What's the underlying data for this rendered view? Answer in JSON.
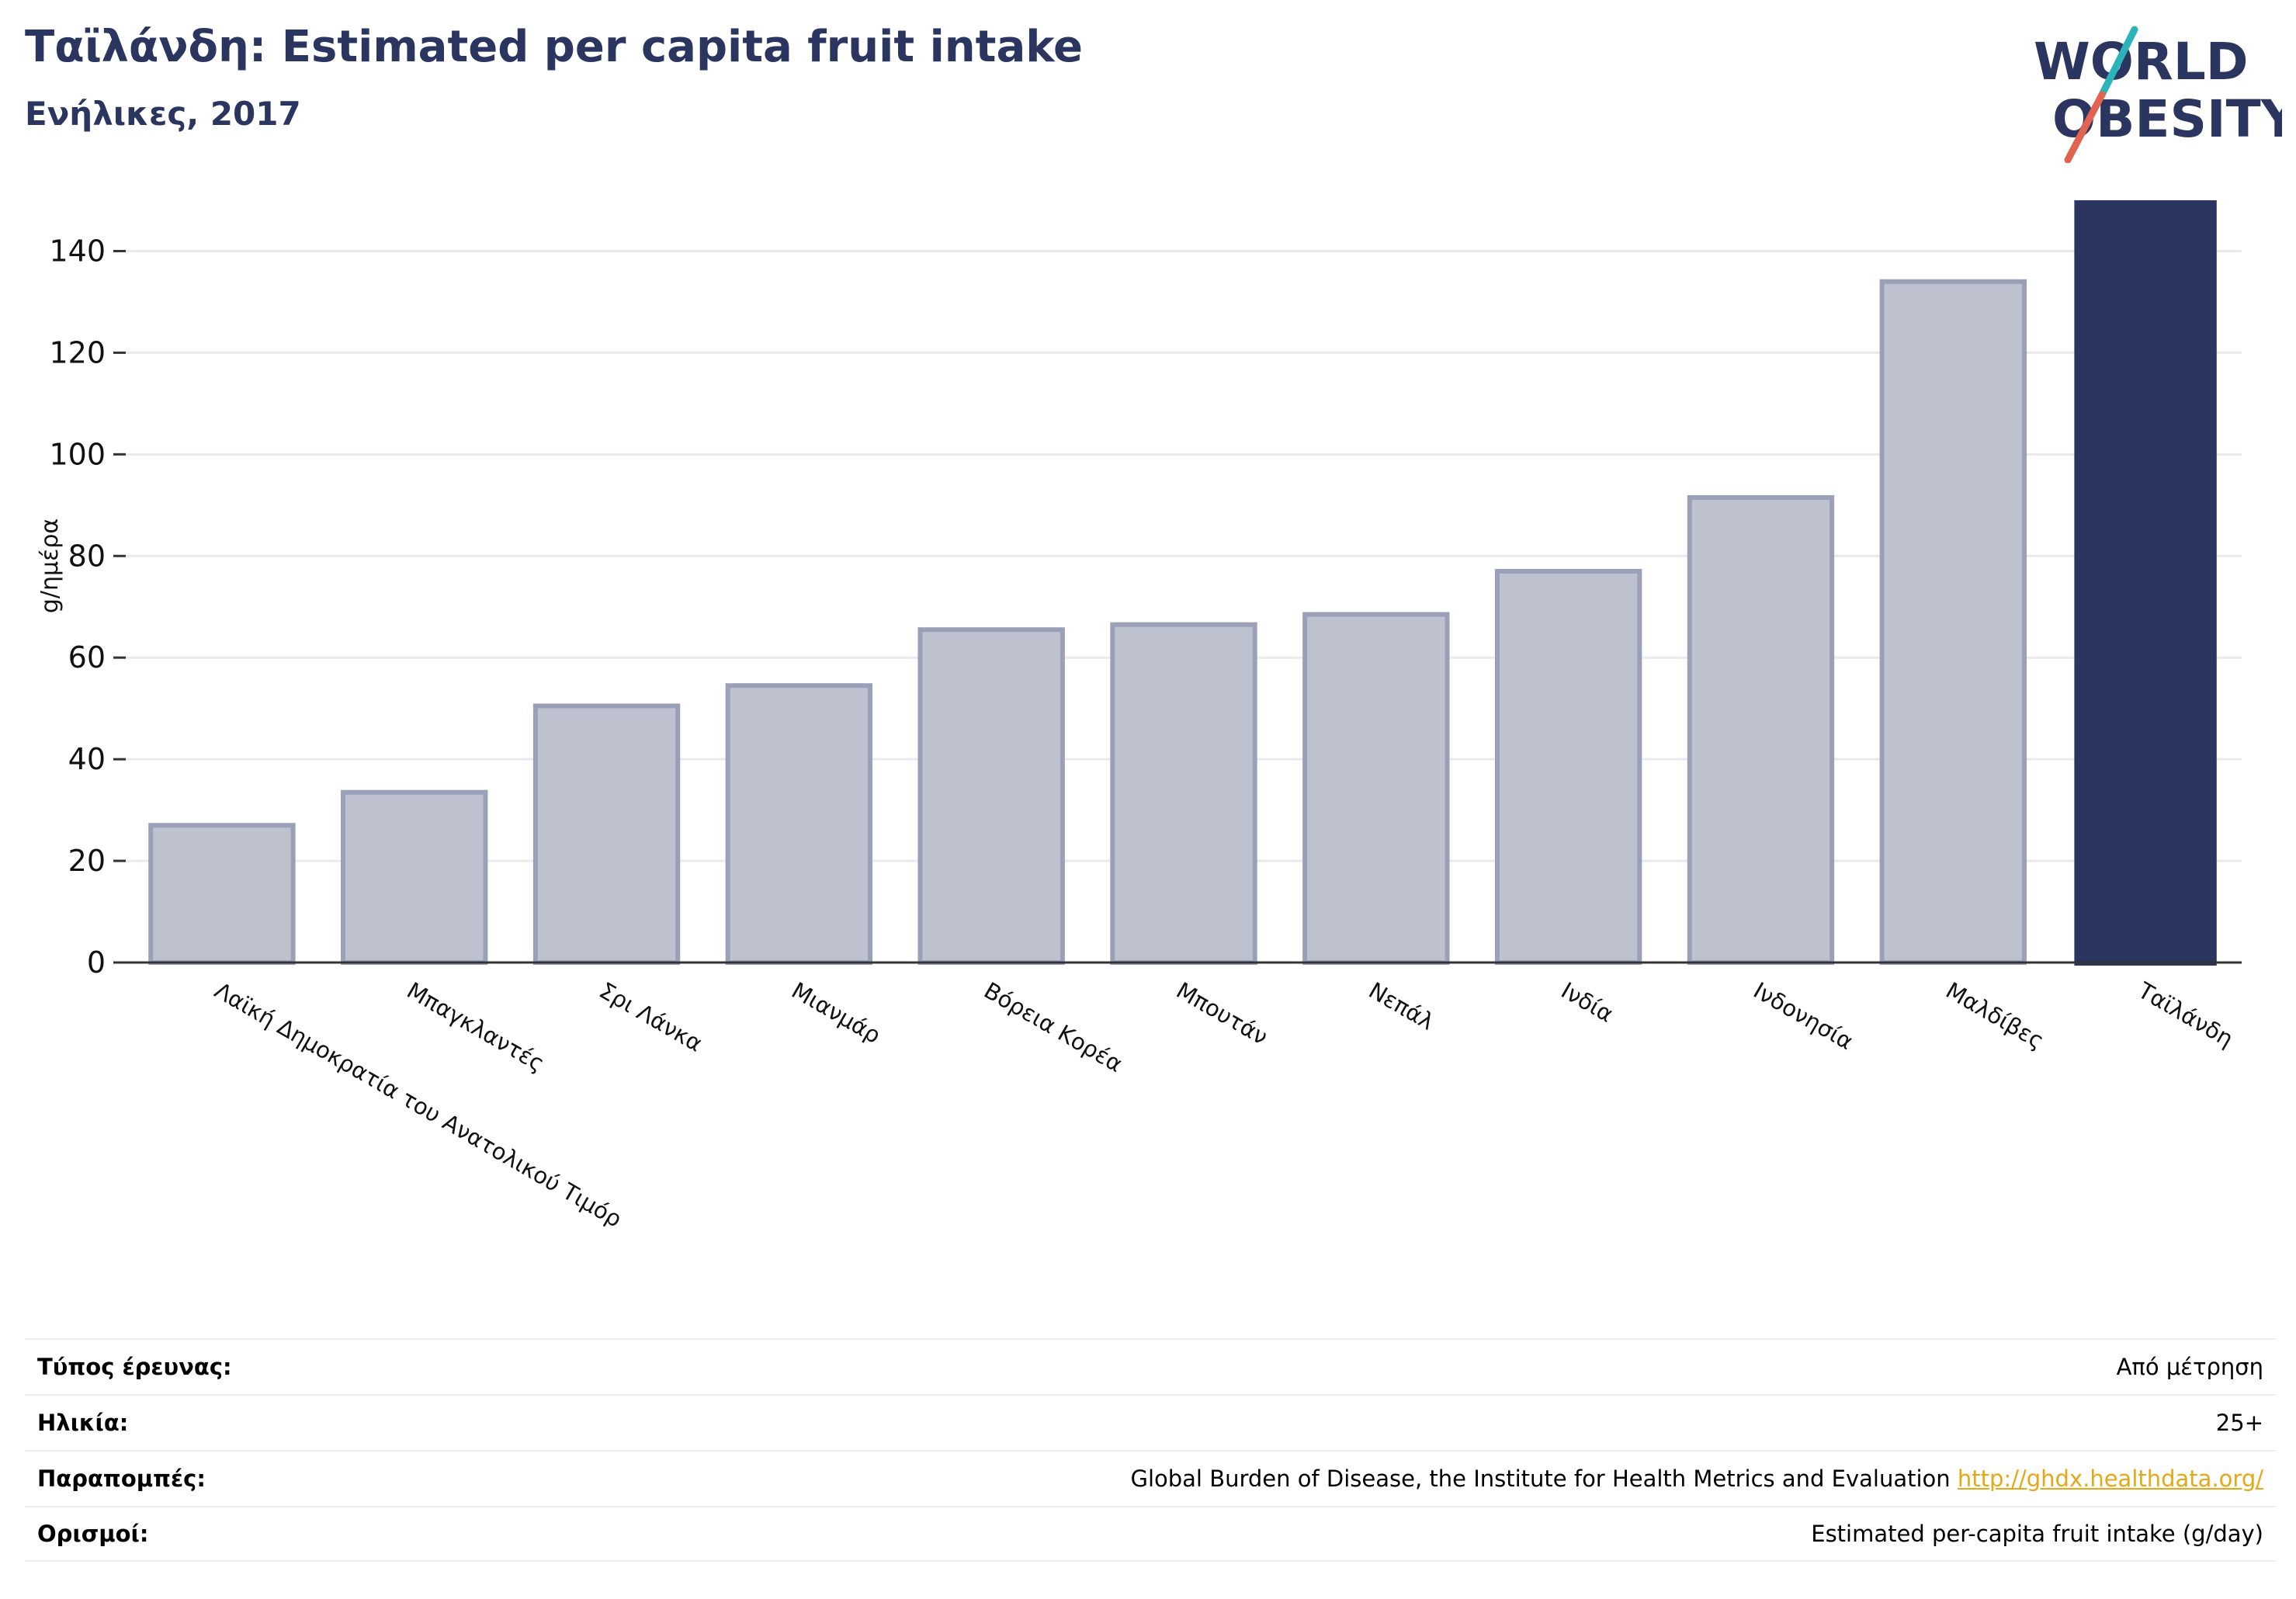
{
  "header": {
    "title": "Ταϊλάνδη: Estimated per capita fruit intake",
    "subtitle": "Ενήλικες, 2017"
  },
  "logo": {
    "line1": "WORLD",
    "line2": "OBESITY",
    "colors": {
      "text": "#2a3560",
      "slash_top": "#2ab3b8",
      "slash_bottom": "#e2634f"
    }
  },
  "colors": {
    "bar": "#2a3560",
    "bar_faded": "#bec2ce",
    "bar_faded_stroke": "#9aa0b8",
    "grid": "#e8eaee",
    "link": "#e6a817"
  },
  "chart_data": {
    "type": "bar",
    "ylabel": "g/ημέρα",
    "ylim": [
      0,
      150
    ],
    "yticks": [
      0,
      20,
      40,
      60,
      80,
      100,
      120,
      140
    ],
    "grid": true,
    "highlight": "Ταϊλάνδη",
    "categories": [
      "Λαϊκή Δημοκρατία του Ανατολικού Τιμόρ",
      "Μπαγκλαντές",
      "Σρι Λάνκα",
      "Μιανμάρ",
      "Βόρεια Κορέα",
      "Μπουτάν",
      "Νεπάλ",
      "Ινδία",
      "Ινδονησία",
      "Μαλδίβες",
      "Ταϊλάνδη"
    ],
    "values": [
      27,
      33.5,
      50.5,
      54.5,
      65.5,
      66.5,
      68.5,
      77,
      91.5,
      134,
      150
    ]
  },
  "info": {
    "rows": [
      {
        "label": "Τύπος έρευνας:",
        "value": "Από μέτρηση"
      },
      {
        "label": "Ηλικία:",
        "value": "25+"
      },
      {
        "label": "Παραπομπές:",
        "value": "Global Burden of Disease, the Institute for Health Metrics and Evaluation",
        "link": "http://ghdx.healthdata.org/"
      },
      {
        "label": "Ορισμοί:",
        "value": "Estimated per-capita fruit intake (g/day)"
      }
    ]
  }
}
